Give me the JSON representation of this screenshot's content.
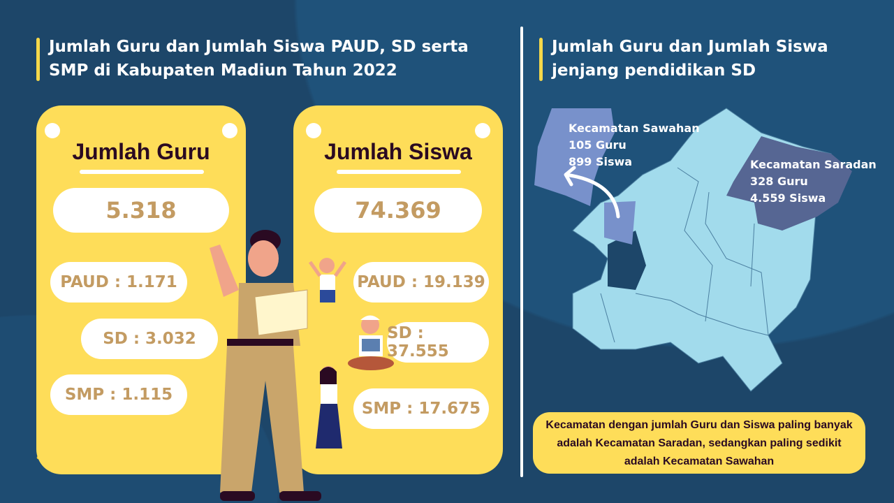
{
  "left_title": "Jumlah Guru dan Jumlah Siswa PAUD, SD serta SMP di Kabupaten Madiun Tahun 2022",
  "right_title": "Jumlah Guru dan Jumlah Siswa jenjang pendidikan SD",
  "guru": {
    "heading": "Jumlah Guru",
    "total": "5.318",
    "paud": "PAUD : 1.171",
    "sd": "SD : 3.032",
    "smp": "SMP : 1.115"
  },
  "siswa": {
    "heading": "Jumlah Siswa",
    "total": "74.369",
    "paud": "PAUD : 19.139",
    "sd": "SD : 37.555",
    "smp": "SMP : 17.675"
  },
  "map": {
    "sawahan": {
      "name": "Kecamatan Sawahan",
      "guru": "105 Guru",
      "siswa": "899 Siswa"
    },
    "saradan": {
      "name": "Kecamatan Saradan",
      "guru": "328 Guru",
      "siswa": "4.559 Siswa"
    }
  },
  "note": "Kecamatan dengan jumlah Guru dan Siswa paling banyak adalah Kecamatan Saradan, sedangkan paling sedikit adalah Kecamatan Sawahan",
  "colors": {
    "background": "#1d4669",
    "card": "#fedd59",
    "value": "#c39b62",
    "map": "#a2dbec",
    "sawahan": "#7891cb",
    "saradan": "#566693"
  }
}
